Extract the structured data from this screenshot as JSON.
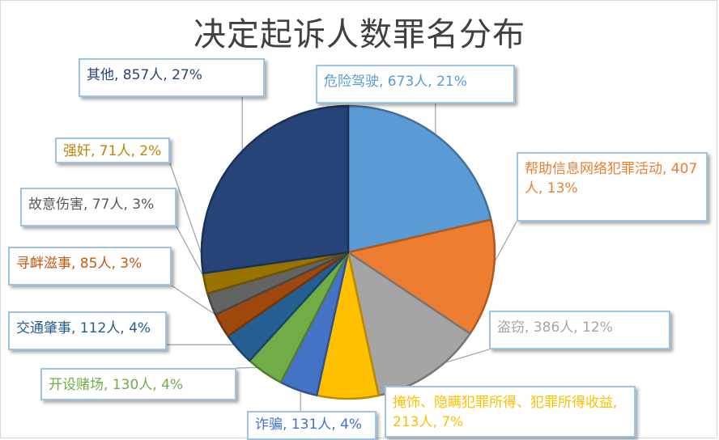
{
  "chart_data": {
    "type": "pie",
    "title": "决定起诉人数罪名分布",
    "slices": [
      {
        "name": "危险驾驶",
        "count": "673人",
        "percent": "21%",
        "value": 673,
        "color": "#5b9bd5",
        "label_color": "#5b9bd5"
      },
      {
        "name": "帮助信息网络犯罪活动",
        "count": "407人",
        "percent": "13%",
        "value": 407,
        "color": "#ed7d31",
        "label_color": "#ed7d31"
      },
      {
        "name": "盗窃",
        "count": "386人",
        "percent": "12%",
        "value": 386,
        "color": "#a5a5a5",
        "label_color": "#a5a5a5"
      },
      {
        "name": "掩饰、隐瞒犯罪所得、犯罪所得收益",
        "count": "213人",
        "percent": "7%",
        "value": 213,
        "color": "#ffc000",
        "label_color": "#ffc000"
      },
      {
        "name": "诈骗",
        "count": "131人",
        "percent": "4%",
        "value": 131,
        "color": "#4472c4",
        "label_color": "#4472c4"
      },
      {
        "name": "开设赌场",
        "count": "130人",
        "percent": "4%",
        "value": 130,
        "color": "#70ad47",
        "label_color": "#70ad47"
      },
      {
        "name": "交通肇事",
        "count": "112人",
        "percent": "4%",
        "value": 112,
        "color": "#255e91",
        "label_color": "#255e91"
      },
      {
        "name": "寻衅滋事",
        "count": "85人",
        "percent": "3%",
        "value": 85,
        "color": "#9e480e",
        "label_color": "#c55a11"
      },
      {
        "name": "故意伤害",
        "count": "77人",
        "percent": "3%",
        "value": 77,
        "color": "#636363",
        "label_color": "#595959"
      },
      {
        "name": "强奸",
        "count": "71人",
        "percent": "2%",
        "value": 71,
        "color": "#997300",
        "label_color": "#b8860b"
      },
      {
        "name": "其他",
        "count": "857人",
        "percent": "27%",
        "value": 857,
        "color": "#264478",
        "label_color": "#264478"
      }
    ]
  }
}
